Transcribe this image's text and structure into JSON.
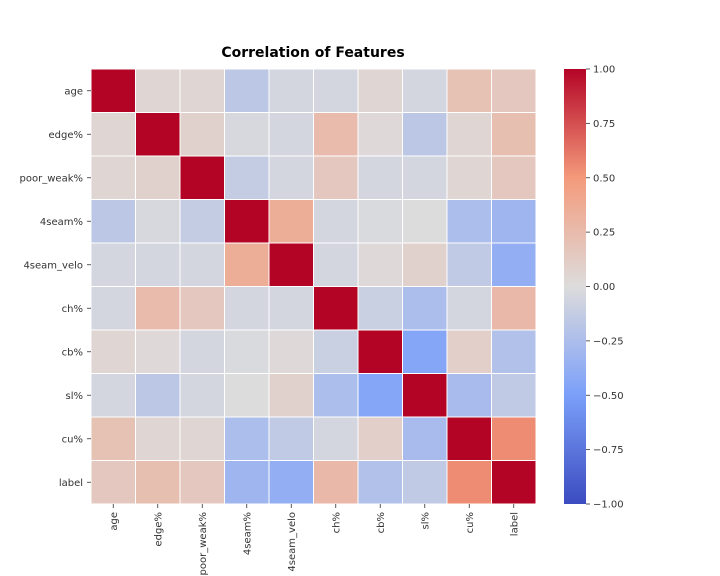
{
  "chart_data": {
    "type": "heatmap",
    "title": "Correlation of Features",
    "labels": [
      "age",
      "edge%",
      "poor_weak%",
      "4seam%",
      "4seam_velo",
      "ch%",
      "cb%",
      "sl%",
      "cu%",
      "label"
    ],
    "matrix": [
      [
        1.0,
        0.05,
        0.05,
        -0.17,
        -0.05,
        -0.05,
        0.05,
        -0.05,
        0.2,
        0.15
      ],
      [
        0.05,
        1.0,
        0.08,
        -0.03,
        -0.05,
        0.25,
        0.02,
        -0.17,
        0.05,
        0.22
      ],
      [
        0.05,
        0.08,
        1.0,
        -0.13,
        -0.05,
        0.15,
        -0.05,
        -0.05,
        0.05,
        0.15
      ],
      [
        -0.17,
        -0.03,
        -0.13,
        1.0,
        0.35,
        -0.05,
        -0.02,
        0.0,
        -0.25,
        -0.32
      ],
      [
        -0.05,
        -0.05,
        -0.05,
        0.35,
        1.0,
        -0.05,
        0.02,
        0.08,
        -0.15,
        -0.38
      ],
      [
        -0.05,
        0.25,
        0.15,
        -0.05,
        -0.05,
        1.0,
        -0.1,
        -0.25,
        -0.05,
        0.27
      ],
      [
        0.05,
        0.02,
        -0.05,
        -0.02,
        0.02,
        -0.1,
        1.0,
        -0.45,
        0.1,
        -0.22
      ],
      [
        -0.05,
        -0.17,
        -0.05,
        0.0,
        0.08,
        -0.25,
        -0.45,
        1.0,
        -0.27,
        -0.15
      ],
      [
        0.2,
        0.05,
        0.05,
        -0.25,
        -0.15,
        -0.05,
        0.1,
        -0.27,
        1.0,
        0.55
      ],
      [
        0.15,
        0.22,
        0.15,
        -0.32,
        -0.38,
        0.27,
        -0.22,
        -0.15,
        0.55,
        1.0
      ]
    ],
    "vmin": -1.0,
    "vmax": 1.0,
    "colormap": "coolwarm",
    "colorbar_ticks": [
      "1.00",
      "0.75",
      "0.50",
      "0.25",
      "0.00",
      "−0.25",
      "−0.50",
      "−0.75",
      "−1.00"
    ],
    "colorbar_tick_values": [
      1.0,
      0.75,
      0.5,
      0.25,
      0.0,
      -0.25,
      -0.5,
      -0.75,
      -1.0
    ],
    "cell_border_color": "#ffffff"
  }
}
